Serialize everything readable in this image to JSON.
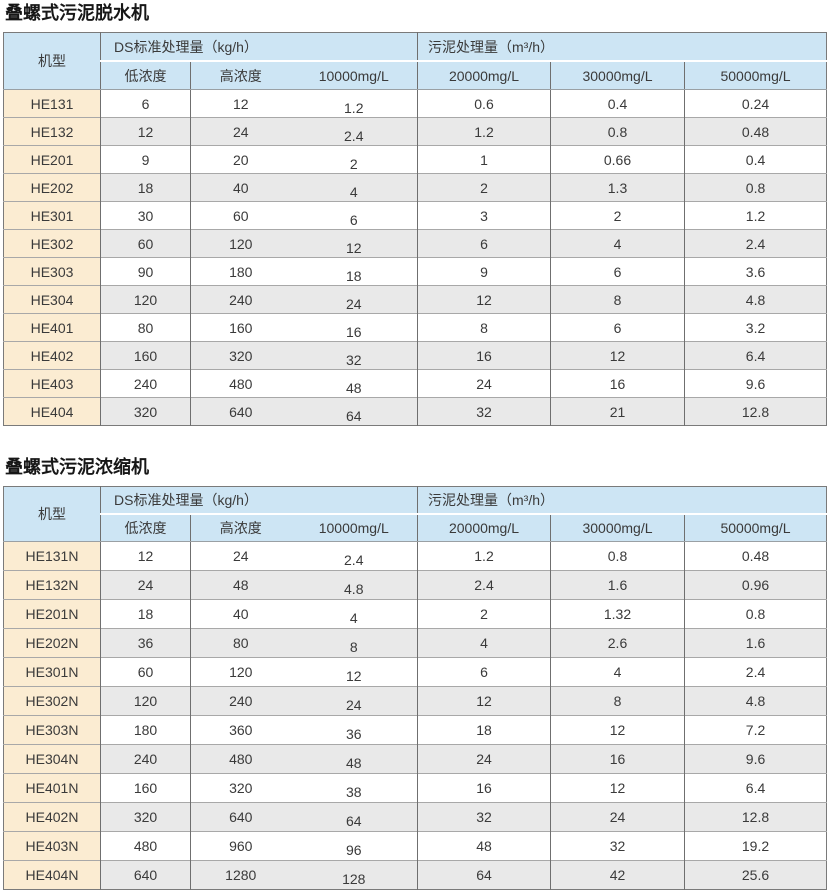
{
  "colors": {
    "header_bg": "#cde5f4",
    "model_column_bg": "#fbecd2",
    "stripe_row_bg": "#e9e9e9",
    "grid_line": "#6f6f6f",
    "text": "#3a3a3a"
  },
  "tables": [
    {
      "title": "叠螺式污泥脱水机",
      "header": {
        "model_label": "机型",
        "ds_group_label": "DS标准处理量（kg/h）",
        "sludge_group_label": "污泥处理量（m³/h）",
        "subheaders": [
          "低浓度",
          "高浓度",
          "10000mg/L",
          "20000mg/L",
          "30000mg/L",
          "50000mg/L"
        ]
      },
      "rows": [
        {
          "model": "HE131",
          "values": [
            "6",
            "12",
            "1.2",
            "0.6",
            "0.4",
            "0.24"
          ]
        },
        {
          "model": "HE132",
          "values": [
            "12",
            "24",
            "2.4",
            "1.2",
            "0.8",
            "0.48"
          ]
        },
        {
          "model": "HE201",
          "values": [
            "9",
            "20",
            "2",
            "1",
            "0.66",
            "0.4"
          ]
        },
        {
          "model": "HE202",
          "values": [
            "18",
            "40",
            "4",
            "2",
            "1.3",
            "0.8"
          ]
        },
        {
          "model": "HE301",
          "values": [
            "30",
            "60",
            "6",
            "3",
            "2",
            "1.2"
          ]
        },
        {
          "model": "HE302",
          "values": [
            "60",
            "120",
            "12",
            "6",
            "4",
            "2.4"
          ]
        },
        {
          "model": "HE303",
          "values": [
            "90",
            "180",
            "18",
            "9",
            "6",
            "3.6"
          ]
        },
        {
          "model": "HE304",
          "values": [
            "120",
            "240",
            "24",
            "12",
            "8",
            "4.8"
          ]
        },
        {
          "model": "HE401",
          "values": [
            "80",
            "160",
            "16",
            "8",
            "6",
            "3.2"
          ]
        },
        {
          "model": "HE402",
          "values": [
            "160",
            "320",
            "32",
            "16",
            "12",
            "6.4"
          ]
        },
        {
          "model": "HE403",
          "values": [
            "240",
            "480",
            "48",
            "24",
            "16",
            "9.6"
          ]
        },
        {
          "model": "HE404",
          "values": [
            "320",
            "640",
            "64",
            "32",
            "21",
            "12.8"
          ]
        }
      ]
    },
    {
      "title": "叠螺式污泥浓缩机",
      "header": {
        "model_label": "机型",
        "ds_group_label": "DS标准处理量（kg/h）",
        "sludge_group_label": "污泥处理量（m³/h）",
        "subheaders": [
          "低浓度",
          "高浓度",
          "10000mg/L",
          "20000mg/L",
          "30000mg/L",
          "50000mg/L"
        ]
      },
      "rows": [
        {
          "model": "HE131N",
          "values": [
            "12",
            "24",
            "2.4",
            "1.2",
            "0.8",
            "0.48"
          ]
        },
        {
          "model": "HE132N",
          "values": [
            "24",
            "48",
            "4.8",
            "2.4",
            "1.6",
            "0.96"
          ]
        },
        {
          "model": "HE201N",
          "values": [
            "18",
            "40",
            "4",
            "2",
            "1.32",
            "0.8"
          ]
        },
        {
          "model": "HE202N",
          "values": [
            "36",
            "80",
            "8",
            "4",
            "2.6",
            "1.6"
          ]
        },
        {
          "model": "HE301N",
          "values": [
            "60",
            "120",
            "12",
            "6",
            "4",
            "2.4"
          ]
        },
        {
          "model": "HE302N",
          "values": [
            "120",
            "240",
            "24",
            "12",
            "8",
            "4.8"
          ]
        },
        {
          "model": "HE303N",
          "values": [
            "180",
            "360",
            "36",
            "18",
            "12",
            "7.2"
          ]
        },
        {
          "model": "HE304N",
          "values": [
            "240",
            "480",
            "48",
            "24",
            "16",
            "9.6"
          ]
        },
        {
          "model": "HE401N",
          "values": [
            "160",
            "320",
            "38",
            "16",
            "12",
            "6.4"
          ]
        },
        {
          "model": "HE402N",
          "values": [
            "320",
            "640",
            "64",
            "32",
            "24",
            "12.8"
          ]
        },
        {
          "model": "HE403N",
          "values": [
            "480",
            "960",
            "96",
            "48",
            "32",
            "19.2"
          ]
        },
        {
          "model": "HE404N",
          "values": [
            "640",
            "1280",
            "128",
            "64",
            "42",
            "25.6"
          ]
        }
      ]
    }
  ]
}
